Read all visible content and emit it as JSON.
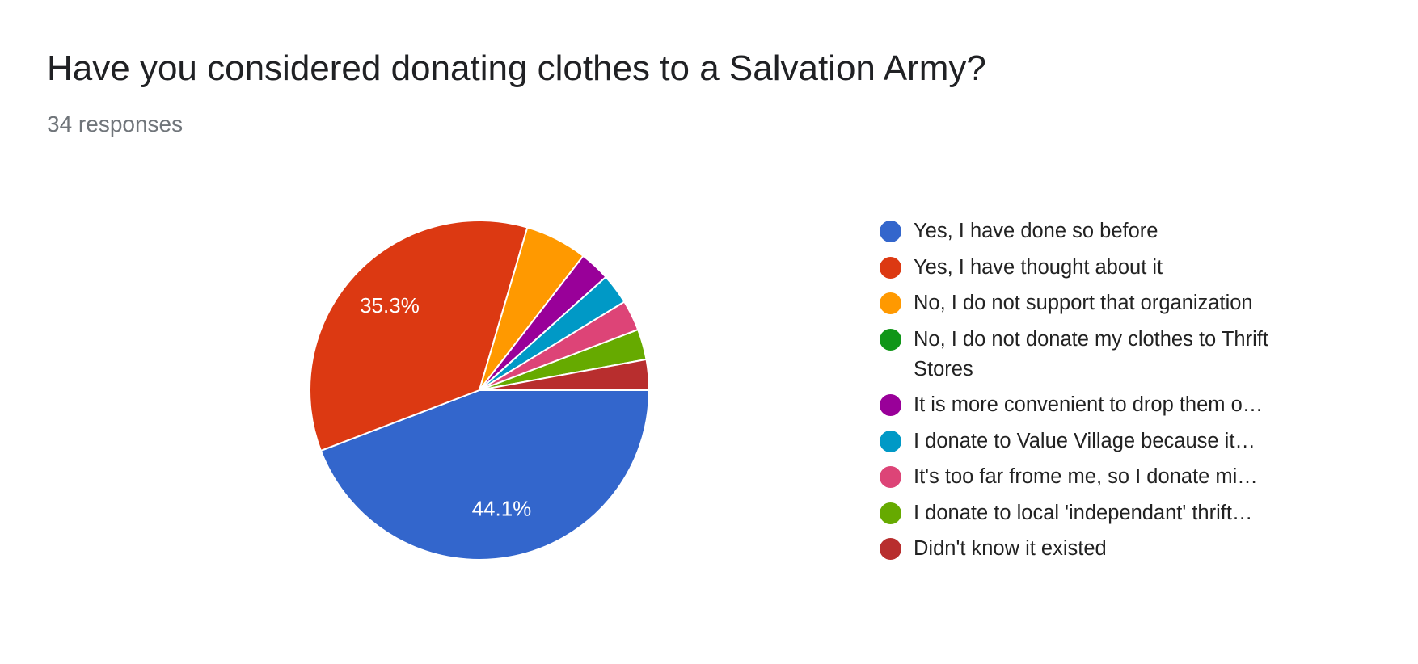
{
  "chart_data": {
    "type": "pie",
    "title": "Have you considered donating clothes to a Salvation Army?",
    "subtitle": "34 responses",
    "categories": [
      "Yes, I have done so before",
      "Yes, I have thought about it",
      "No, I do not support that organization",
      "No, I do not donate my clothes to Thrift Stores",
      "It is more convenient to drop them o…",
      "I donate to Value Village because it…",
      "It's too far frome me, so I donate mi…",
      "I donate to local 'independant' thrift…",
      "Didn't know it existed"
    ],
    "values": [
      44.1,
      35.3,
      5.9,
      0,
      2.9,
      2.9,
      2.9,
      2.9,
      2.9
    ],
    "value_labels": [
      "44.1%",
      "35.3%",
      null,
      null,
      null,
      null,
      null,
      null,
      null
    ],
    "colors": [
      "#3366cc",
      "#dc3912",
      "#ff9900",
      "#109618",
      "#990099",
      "#0099c6",
      "#dd4477",
      "#66aa00",
      "#b82e2e"
    ],
    "legend": "right"
  }
}
